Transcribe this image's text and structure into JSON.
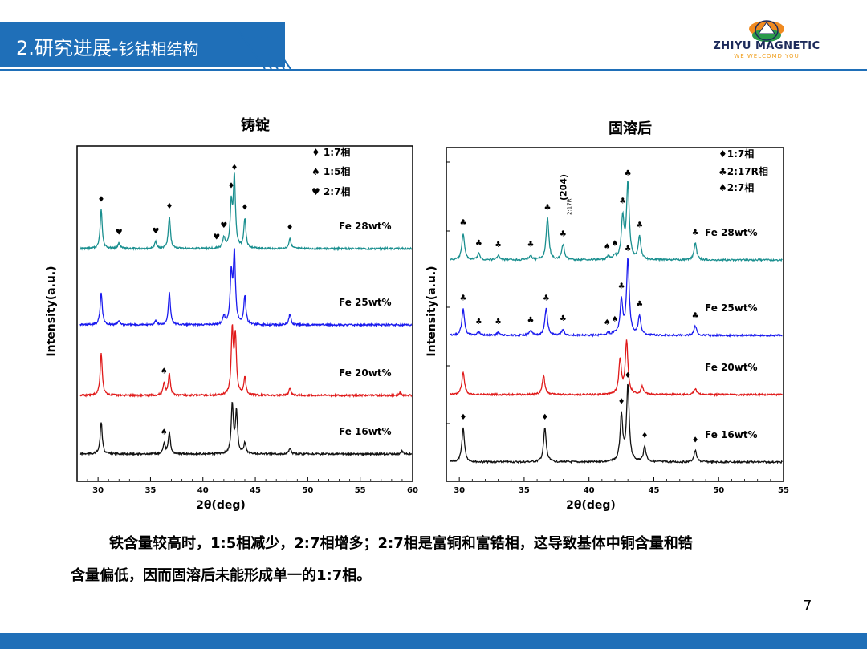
{
  "header": {
    "title_main": "2.研究进展-",
    "title_sub": "钐钴相结构",
    "brand": "ZHIYU MAGNETIC",
    "slogan": "WE WELCOMD YOU"
  },
  "colors": {
    "accent": "#1f6fb8",
    "teal": "#1a8f8f",
    "blue": "#1a1aee",
    "red": "#e01a1a",
    "black": "#111111"
  },
  "chart_data": [
    {
      "type": "line",
      "title": "铸锭",
      "xlabel": "2θ(deg)",
      "ylabel": "Intensity(a.u.)",
      "xlim": [
        28,
        60
      ],
      "xticks": [
        30,
        35,
        40,
        45,
        50,
        55,
        60
      ],
      "legend": [
        "♦ 1:7相",
        "♠ 1:5相",
        "♥ 2:7相"
      ],
      "series": [
        {
          "name": "Fe 28wt%",
          "color": "#1a8f8f",
          "peaks": [
            [
              30.3,
              55
            ],
            [
              32.0,
              8
            ],
            [
              35.5,
              10
            ],
            [
              36.8,
              45
            ],
            [
              42.0,
              15
            ],
            [
              42.7,
              60
            ],
            [
              43.0,
              100
            ],
            [
              44.0,
              42
            ],
            [
              48.3,
              15
            ]
          ],
          "markers": [
            [
              30.3,
              "♦"
            ],
            [
              32.0,
              "♥"
            ],
            [
              35.5,
              "♥"
            ],
            [
              36.8,
              "♦"
            ],
            [
              41.3,
              "♥"
            ],
            [
              42.0,
              "♥"
            ],
            [
              42.7,
              "♦"
            ],
            [
              43.0,
              "♦"
            ],
            [
              44.0,
              "♦"
            ],
            [
              48.3,
              "♦"
            ]
          ]
        },
        {
          "name": "Fe 25wt%",
          "color": "#1a1aee",
          "peaks": [
            [
              30.3,
              45
            ],
            [
              32.0,
              6
            ],
            [
              35.5,
              6
            ],
            [
              36.8,
              45
            ],
            [
              42.0,
              12
            ],
            [
              42.7,
              70
            ],
            [
              43.0,
              100
            ],
            [
              44.0,
              40
            ],
            [
              48.3,
              15
            ]
          ],
          "markers": []
        },
        {
          "name": "Fe 20wt%",
          "color": "#e01a1a",
          "peaks": [
            [
              30.3,
              60
            ],
            [
              36.3,
              18
            ],
            [
              36.8,
              30
            ],
            [
              42.8,
              90
            ],
            [
              43.1,
              80
            ],
            [
              44.0,
              25
            ],
            [
              48.3,
              10
            ],
            [
              58.8,
              4
            ]
          ],
          "markers": [
            [
              36.3,
              "♠"
            ]
          ]
        },
        {
          "name": "Fe 16wt%",
          "color": "#111111",
          "peaks": [
            [
              30.3,
              45
            ],
            [
              36.3,
              15
            ],
            [
              36.8,
              30
            ],
            [
              42.8,
              70
            ],
            [
              43.2,
              60
            ],
            [
              44.0,
              15
            ],
            [
              48.3,
              8
            ],
            [
              59.0,
              4
            ]
          ],
          "markers": [
            [
              36.3,
              "♠"
            ]
          ]
        }
      ]
    },
    {
      "type": "line",
      "title": "固溶后",
      "xlabel": "2θ(deg)",
      "ylabel": "Intensity(a.u.)",
      "xlim": [
        29,
        55
      ],
      "xticks": [
        30,
        35,
        40,
        45,
        50,
        55
      ],
      "legend": [
        "♦1:7相",
        "♣2:17R相",
        "♠2:7相"
      ],
      "annotation": "(204)",
      "annotation_sub": "2:17R",
      "series": [
        {
          "name": "Fe 28wt%",
          "color": "#1a8f8f",
          "peaks": [
            [
              30.3,
              35
            ],
            [
              31.5,
              8
            ],
            [
              33.0,
              6
            ],
            [
              35.5,
              6
            ],
            [
              36.8,
              55
            ],
            [
              38.0,
              20
            ],
            [
              41.5,
              4
            ],
            [
              42.0,
              4
            ],
            [
              42.6,
              55
            ],
            [
              43.0,
              100
            ],
            [
              43.9,
              30
            ],
            [
              48.2,
              22
            ]
          ],
          "markers": [
            [
              30.3,
              "♣"
            ],
            [
              31.5,
              "♣"
            ],
            [
              33.0,
              "♣"
            ],
            [
              35.5,
              "♣"
            ],
            [
              36.8,
              "♣"
            ],
            [
              38.0,
              "♣"
            ],
            [
              41.4,
              "♠"
            ],
            [
              42.0,
              "♠"
            ],
            [
              42.6,
              "♣"
            ],
            [
              43.0,
              "♣"
            ],
            [
              43.9,
              "♣"
            ],
            [
              48.2,
              "♣"
            ]
          ]
        },
        {
          "name": "Fe 25wt%",
          "color": "#1a1aee",
          "peaks": [
            [
              30.3,
              35
            ],
            [
              31.5,
              4
            ],
            [
              33.0,
              4
            ],
            [
              35.5,
              6
            ],
            [
              36.7,
              35
            ],
            [
              38.0,
              8
            ],
            [
              41.5,
              3
            ],
            [
              42.0,
              3
            ],
            [
              42.5,
              45
            ],
            [
              43.0,
              100
            ],
            [
              43.9,
              25
            ],
            [
              48.2,
              12
            ]
          ],
          "markers": [
            [
              30.3,
              "♣"
            ],
            [
              31.5,
              "♣"
            ],
            [
              33.0,
              "♣"
            ],
            [
              35.5,
              "♣"
            ],
            [
              36.7,
              "♣"
            ],
            [
              38.0,
              "♣"
            ],
            [
              41.4,
              "♠"
            ],
            [
              42.0,
              "♠"
            ],
            [
              42.5,
              "♣"
            ],
            [
              43.0,
              "♣"
            ],
            [
              43.9,
              "♣"
            ],
            [
              48.2,
              "♣"
            ]
          ]
        },
        {
          "name": "Fe 20wt%",
          "color": "#e01a1a",
          "peaks": [
            [
              30.3,
              30
            ],
            [
              36.5,
              25
            ],
            [
              42.4,
              45
            ],
            [
              42.9,
              70
            ],
            [
              44.1,
              10
            ],
            [
              48.2,
              8
            ]
          ],
          "markers": []
        },
        {
          "name": "Fe 16wt%",
          "color": "#111111",
          "peaks": [
            [
              30.3,
              45
            ],
            [
              36.6,
              45
            ],
            [
              42.5,
              60
            ],
            [
              43.0,
              100
            ],
            [
              44.3,
              20
            ],
            [
              48.2,
              15
            ]
          ],
          "markers": [
            [
              30.3,
              "♦"
            ],
            [
              36.6,
              "♦"
            ],
            [
              42.5,
              "♦"
            ],
            [
              43.0,
              "♦"
            ],
            [
              44.3,
              "♦"
            ],
            [
              48.2,
              "♦"
            ]
          ]
        }
      ]
    }
  ],
  "caption": {
    "line1": "铁含量较高时，1:5相减少，2:7相增多；2:7相是富铜和富锆相，这导致基体中铜含量和锆",
    "line2": "含量偏低，因而固溶后未能形成单一的1:7相。"
  },
  "page_number": "7"
}
